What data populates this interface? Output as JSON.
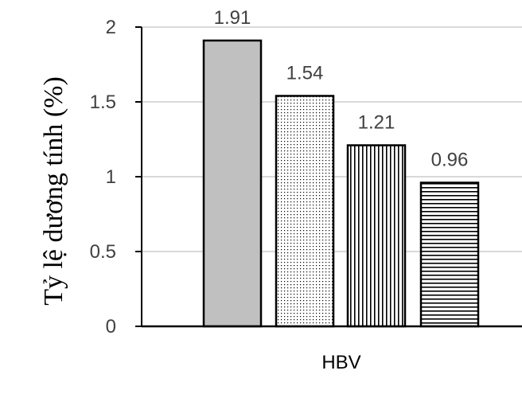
{
  "chart_data": {
    "type": "bar",
    "categories": [
      "HBV"
    ],
    "series": [
      {
        "values": [
          1.91
        ],
        "pattern": "solid",
        "color": "#c0c0c0"
      },
      {
        "values": [
          1.54
        ],
        "pattern": "dots",
        "color": "#ffffff"
      },
      {
        "values": [
          1.21
        ],
        "pattern": "vertical-lines",
        "color": "#ffffff"
      },
      {
        "values": [
          0.96
        ],
        "pattern": "horizontal-lines",
        "color": "#ffffff"
      }
    ],
    "data_labels": [
      "1.91",
      "1.54",
      "1.21",
      "0.96"
    ],
    "ylabel": "Tỷ lệ dương tính (%)",
    "xlabel": "",
    "ylim": [
      0,
      2
    ],
    "yticks": [
      0,
      0.5,
      1,
      1.5,
      2
    ],
    "ytick_labels": [
      "0",
      "0.5",
      "1",
      "1.5",
      "2"
    ],
    "grid": true,
    "gridline_color": "#d9d9d9"
  }
}
